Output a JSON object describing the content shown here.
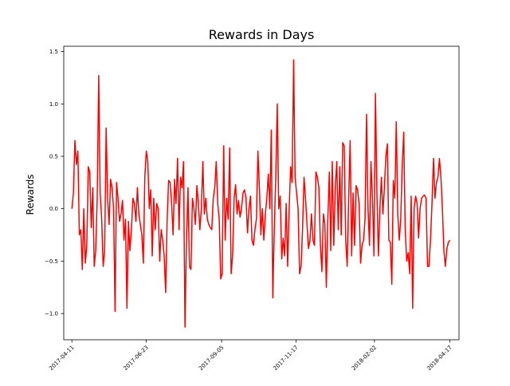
{
  "chart_data": {
    "type": "line",
    "title": "Rewards in Days",
    "xlabel": "",
    "ylabel": "Rewards",
    "x_start_date": "2017-04-11",
    "x_end_date": "2018-04-17",
    "xlim_days": [
      -8,
      380
    ],
    "ylim": [
      -1.25,
      1.55
    ],
    "x_ticks": [
      {
        "label": "2017-04-11",
        "day": 0
      },
      {
        "label": "2017-06-23",
        "day": 73
      },
      {
        "label": "2017-09-05",
        "day": 147
      },
      {
        "label": "2017-11-17",
        "day": 220
      },
      {
        "label": "2018-02-02",
        "day": 297
      },
      {
        "label": "2018-04-17",
        "day": 371
      }
    ],
    "y_ticks": [
      {
        "label": "1.5",
        "value": 1.5
      },
      {
        "label": "1.0",
        "value": 1.0
      },
      {
        "label": "0.5",
        "value": 0.5
      },
      {
        "label": "0.0",
        "value": 0.0
      },
      {
        "label": "−0.5",
        "value": -0.5
      },
      {
        "label": "−1.0",
        "value": -1.0
      }
    ],
    "grid": false,
    "legend": "none",
    "series": [
      {
        "name": "",
        "color": "#ff0000",
        "values": [
          0.0,
          0.15,
          0.65,
          0.42,
          0.55,
          -0.25,
          -0.2,
          -0.58,
          0.0,
          -0.52,
          -0.35,
          0.4,
          0.35,
          -0.18,
          0.2,
          -0.55,
          -0.4,
          0.1,
          1.27,
          0.15,
          -0.1,
          -0.55,
          -0.4,
          0.77,
          0.1,
          -0.15,
          0.28,
          0.2,
          0.0,
          -0.98,
          0.25,
          0.1,
          -0.12,
          -0.05,
          0.08,
          -0.3,
          -0.1,
          -0.95,
          -0.12,
          -0.4,
          -0.2,
          0.1,
          0.05,
          -0.12,
          0.2,
          -0.05,
          -0.15,
          -0.25,
          -0.52,
          0.3,
          0.55,
          0.45,
          0.0,
          0.18,
          -0.45,
          0.1,
          -0.2,
          0.05,
          0.0,
          -0.5,
          -0.2,
          -0.3,
          -0.45,
          -0.8,
          -0.1,
          0.27,
          0.25,
          0.05,
          -0.25,
          0.28,
          0.05,
          0.48,
          -0.2,
          0.3,
          0.2,
          0.45,
          -1.13,
          -0.3,
          0.2,
          -0.55,
          -0.58,
          0.1,
          0.0,
          -0.15,
          0.22,
          0.05,
          -0.2,
          0.0,
          0.45,
          -0.05,
          0.1,
          -0.1,
          -0.15,
          -0.18,
          -0.2,
          0.1,
          0.2,
          0.45,
          0.05,
          -0.1,
          -0.67,
          -0.62,
          0.6,
          -0.3,
          0.1,
          -0.1,
          0.58,
          -0.62,
          -0.45,
          0.1,
          0.23,
          -0.05,
          0.08,
          -0.08,
          0.0,
          0.15,
          0.18,
          0.1,
          -0.23,
          0.0,
          0.12,
          -0.3,
          -0.35,
          -0.2,
          -0.1,
          0.55,
          0.2,
          -0.25,
          0.0,
          -0.3,
          -0.05,
          0.1,
          0.33,
          0.0,
          0.75,
          -0.85,
          -0.2,
          0.3,
          1.0,
          0.0,
          0.12,
          -0.48,
          -0.28,
          -0.45,
          0.05,
          -0.55,
          0.0,
          0.4,
          0.25,
          1.42,
          0.3,
          0.15,
          0.0,
          -0.62,
          -0.55,
          -0.2,
          0.3,
          0.1,
          -0.15,
          -0.38,
          -0.3,
          -0.05,
          -0.3,
          -0.35,
          0.35,
          0.3,
          0.2,
          -0.35,
          -0.6,
          -0.05,
          -0.15,
          -0.75,
          -0.1,
          0.35,
          -0.4,
          0.45,
          -0.35,
          0.2,
          0.45,
          -0.2,
          0.4,
          -0.25,
          0.63,
          0.6,
          -0.3,
          -0.55,
          0.1,
          0.65,
          -0.45,
          0.15,
          -0.35,
          0.22,
          0.18,
          0.05,
          -0.52,
          -0.35,
          -0.3,
          -0.1,
          0.9,
          0.0,
          -0.35,
          0.45,
          0.1,
          -0.45,
          1.1,
          0.15,
          -0.45,
          0.0,
          0.3,
          -0.05,
          0.2,
          0.5,
          0.62,
          -0.3,
          -0.32,
          -0.72,
          0.27,
          0.1,
          0.83,
          -0.05,
          -0.3,
          -0.1,
          0.42,
          0.73,
          -0.2,
          -0.5,
          -0.42,
          -0.62,
          0.12,
          -0.95,
          0.0,
          0.12,
          0.05,
          -0.28,
          0.0,
          0.1,
          0.12,
          0.13,
          0.1,
          -0.55,
          -0.55,
          -0.3,
          0.05,
          0.48,
          0.1,
          0.25,
          0.3,
          0.48,
          0.3,
          0.0,
          -0.4,
          -0.55,
          -0.38,
          -0.32,
          -0.3
        ]
      }
    ]
  }
}
